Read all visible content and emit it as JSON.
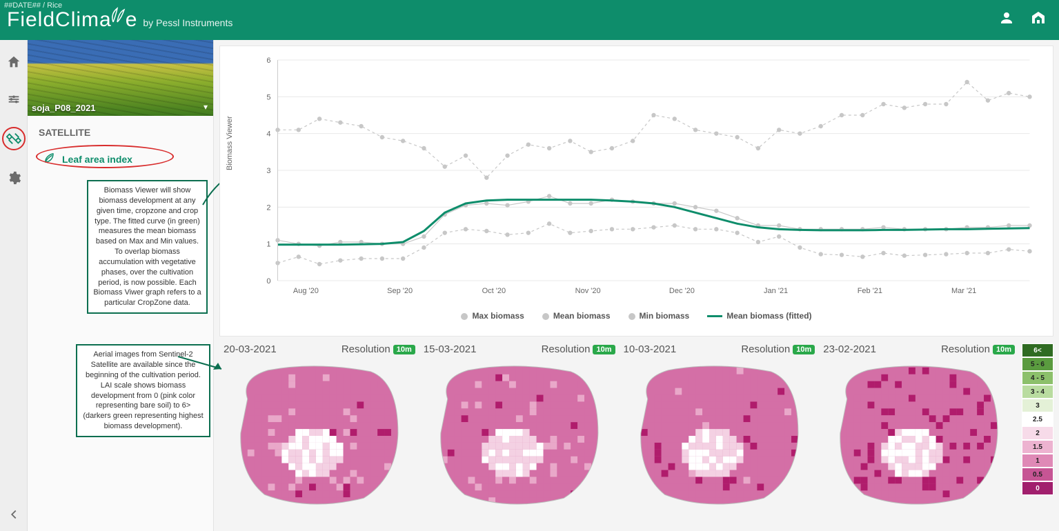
{
  "header": {
    "breadcrumb": "##DATE## / Rice",
    "brand_main": "FieldClima",
    "brand_tail": "e",
    "byline": "by Pessl Instruments"
  },
  "sidebar": {
    "field_name": "soja_P08_2021",
    "section": "SATELLITE",
    "lai_label": "Leaf area index",
    "annotation_chart": "Biomass Viewer will show biomass development at any given time, cropzone and crop type. The fitted curve (in green) measures the mean biomass based on Max and Min values. To overlap biomass accumulation with vegetative phases, over the cultivation period, is now possible. Each Biomass Viwer graph refers to a particular CropZone data.",
    "annotation_sat": "Aerial images from Sentinel-2 Satellite are available since the beginning of the cultivation period. LAI scale shows biomass development from 0 (pink color representing bare soil) to 6> (darkers green representing highest biomass development)."
  },
  "chart": {
    "type": "line-scatter",
    "y_axis_label": "Biomass Viewer",
    "ylim": [
      0,
      6
    ],
    "ytick_step": 1,
    "x_categories": [
      "Aug '20",
      "Sep '20",
      "Oct '20",
      "Nov '20",
      "Dec '20",
      "Jan '21",
      "Feb '21",
      "Mar '21"
    ],
    "grid_color": "#e8e8e8",
    "series_point_color": "#c7c7c7",
    "fitted_color": "#0e8d6b",
    "fitted_width": 3,
    "legend": [
      "Max biomass",
      "Mean biomass",
      "Min biomass",
      "Mean biomass (fitted)"
    ],
    "max": [
      4.1,
      4.1,
      4.4,
      4.3,
      4.2,
      3.9,
      3.8,
      3.6,
      3.1,
      3.4,
      2.8,
      3.4,
      3.7,
      3.6,
      3.8,
      3.5,
      3.6,
      3.8,
      4.5,
      4.4,
      4.1,
      4.0,
      3.9,
      3.6,
      4.1,
      4.0,
      4.2,
      4.5,
      4.5,
      4.8,
      4.7,
      4.8,
      4.8,
      5.4,
      4.9,
      5.1,
      5.0
    ],
    "mean": [
      1.1,
      1.0,
      0.95,
      1.05,
      1.05,
      1.0,
      1.0,
      1.2,
      1.8,
      2.05,
      2.1,
      2.05,
      2.15,
      2.3,
      2.1,
      2.1,
      2.2,
      2.15,
      2.1,
      2.1,
      2.0,
      1.9,
      1.7,
      1.5,
      1.5,
      1.4,
      1.4,
      1.4,
      1.4,
      1.45,
      1.4,
      1.4,
      1.4,
      1.45,
      1.45,
      1.5,
      1.5
    ],
    "min": [
      0.48,
      0.65,
      0.45,
      0.55,
      0.6,
      0.6,
      0.6,
      0.9,
      1.3,
      1.4,
      1.35,
      1.25,
      1.3,
      1.55,
      1.3,
      1.35,
      1.4,
      1.4,
      1.45,
      1.5,
      1.4,
      1.4,
      1.3,
      1.05,
      1.2,
      0.9,
      0.72,
      0.7,
      0.65,
      0.75,
      0.68,
      0.7,
      0.72,
      0.75,
      0.75,
      0.85,
      0.8
    ],
    "fitted": [
      0.98,
      0.98,
      0.98,
      0.98,
      0.99,
      1.0,
      1.05,
      1.35,
      1.85,
      2.1,
      2.18,
      2.2,
      2.2,
      2.2,
      2.2,
      2.2,
      2.18,
      2.15,
      2.1,
      2.0,
      1.85,
      1.7,
      1.55,
      1.45,
      1.4,
      1.38,
      1.37,
      1.37,
      1.37,
      1.38,
      1.38,
      1.39,
      1.4,
      1.4,
      1.41,
      1.42,
      1.43
    ]
  },
  "satellite": {
    "resolution_label": "Resolution",
    "resolution_value": "10m",
    "tiles": [
      {
        "date": "20-03-2021"
      },
      {
        "date": "15-03-2021"
      },
      {
        "date": "10-03-2021"
      },
      {
        "date": "23-02-2021"
      }
    ],
    "palette": {
      "p_dark_magenta": "#b01c6c",
      "p_magenta": "#d46fa6",
      "p_pink": "#e9a8c9",
      "p_lpink": "#f4d1e3",
      "p_white": "#ffffff",
      "p_lgreen": "#cfe8c4",
      "p_green": "#82c27a",
      "p_dgreen": "#3d8b37"
    }
  },
  "scale": [
    {
      "label": "6<",
      "bg": "#2f6b22",
      "fg": "#fff"
    },
    {
      "label": "5 - 6",
      "bg": "#5a9b3f",
      "fg": "#222"
    },
    {
      "label": "4 - 5",
      "bg": "#8cc06b",
      "fg": "#222"
    },
    {
      "label": "3 - 4",
      "bg": "#b9dca0",
      "fg": "#222"
    },
    {
      "label": "3",
      "bg": "#e4f1d7",
      "fg": "#222"
    },
    {
      "label": "2.5",
      "bg": "#ffffff",
      "fg": "#222"
    },
    {
      "label": "2",
      "bg": "#f7dbe9",
      "fg": "#222"
    },
    {
      "label": "1.5",
      "bg": "#edb3d0",
      "fg": "#222"
    },
    {
      "label": "1",
      "bg": "#df89b6",
      "fg": "#222"
    },
    {
      "label": "0.5",
      "bg": "#c65594",
      "fg": "#222"
    },
    {
      "label": "0",
      "bg": "#a11f6d",
      "fg": "#fff"
    }
  ]
}
